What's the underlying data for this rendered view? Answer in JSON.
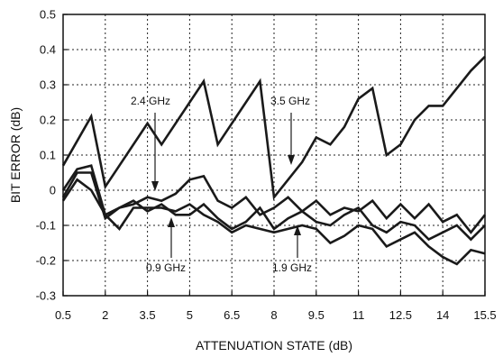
{
  "chart_data": {
    "type": "line",
    "xlabel": "ATTENUATION STATE (dB)",
    "ylabel": "BIT ERROR (dB)",
    "xlim": [
      0.5,
      15.5
    ],
    "ylim": [
      -0.3,
      0.5
    ],
    "x_ticks": [
      "0.5",
      "2",
      "3.5",
      "5",
      "6.5",
      "8",
      "9.5",
      "11",
      "12.5",
      "14",
      "15.5"
    ],
    "y_ticks": [
      "0.5",
      "0.4",
      "0.3",
      "0.2",
      "0.1",
      "0",
      "-0.1",
      "-0.2",
      "-0.3"
    ],
    "grid": true,
    "line_color": "#1a1a1a",
    "series": [
      {
        "name": "3.5 GHz",
        "x": [
          0.5,
          1.5,
          2,
          3.5,
          4,
          5.5,
          6,
          7.5,
          8,
          8.5,
          9,
          9.5,
          10,
          10.5,
          11,
          11.5,
          12,
          12.5,
          13,
          13.5,
          14,
          14.5,
          15,
          15.5
        ],
        "values": [
          0.07,
          0.21,
          0.01,
          0.19,
          0.13,
          0.31,
          0.13,
          0.31,
          -0.02,
          0.03,
          0.08,
          0.15,
          0.13,
          0.18,
          0.26,
          0.29,
          0.1,
          0.13,
          0.2,
          0.24,
          0.24,
          0.29,
          0.34,
          0.38
        ]
      },
      {
        "name": "2.4 GHz",
        "x": [
          0.5,
          1,
          1.5,
          2,
          2.5,
          3,
          3.5,
          4,
          4.5,
          5,
          5.5,
          6,
          6.5,
          7,
          7.5,
          8,
          8.5,
          9,
          9.5,
          10,
          10.5,
          11,
          11.5,
          12,
          12.5,
          13,
          13.5,
          14,
          14.5,
          15,
          15.5
        ],
        "values": [
          0.0,
          0.06,
          0.07,
          -0.07,
          -0.05,
          -0.04,
          -0.02,
          -0.03,
          -0.01,
          0.03,
          0.04,
          -0.03,
          -0.05,
          -0.02,
          -0.07,
          -0.05,
          -0.02,
          -0.06,
          -0.03,
          -0.07,
          -0.05,
          -0.06,
          -0.03,
          -0.08,
          -0.04,
          -0.08,
          -0.04,
          -0.09,
          -0.07,
          -0.12,
          -0.07
        ]
      },
      {
        "name": "1.9 GHz",
        "x": [
          0.5,
          1,
          1.5,
          2,
          2.5,
          3,
          3.5,
          4,
          4.5,
          5,
          5.5,
          6,
          6.5,
          7,
          7.5,
          8,
          8.5,
          9,
          9.5,
          10,
          10.5,
          11,
          11.5,
          12,
          12.5,
          13,
          13.5,
          14,
          14.5,
          15,
          15.5
        ],
        "values": [
          -0.02,
          0.05,
          0.05,
          -0.08,
          -0.05,
          -0.03,
          -0.06,
          -0.04,
          -0.07,
          -0.07,
          -0.04,
          -0.08,
          -0.11,
          -0.09,
          -0.05,
          -0.11,
          -0.08,
          -0.06,
          -0.09,
          -0.1,
          -0.07,
          -0.05,
          -0.1,
          -0.12,
          -0.09,
          -0.1,
          -0.14,
          -0.12,
          -0.1,
          -0.14,
          -0.1
        ]
      },
      {
        "name": "0.9 GHz",
        "x": [
          0.5,
          1,
          1.5,
          2,
          2.5,
          3,
          3.5,
          4,
          4.5,
          5,
          5.5,
          6,
          6.5,
          7,
          7.5,
          8,
          8.5,
          9,
          9.5,
          10,
          10.5,
          11,
          11.5,
          12,
          12.5,
          13,
          13.5,
          14,
          14.5,
          15,
          15.5
        ],
        "values": [
          -0.03,
          0.03,
          0.0,
          -0.07,
          -0.11,
          -0.05,
          -0.05,
          -0.05,
          -0.06,
          -0.04,
          -0.07,
          -0.09,
          -0.12,
          -0.1,
          -0.11,
          -0.12,
          -0.11,
          -0.1,
          -0.11,
          -0.15,
          -0.13,
          -0.1,
          -0.11,
          -0.16,
          -0.14,
          -0.12,
          -0.16,
          -0.19,
          -0.21,
          -0.17,
          -0.18
        ]
      }
    ],
    "annotations": [
      "2.4 GHz",
      "3.5 GHz",
      "0.9 GHz",
      "1.9 GHz"
    ]
  }
}
